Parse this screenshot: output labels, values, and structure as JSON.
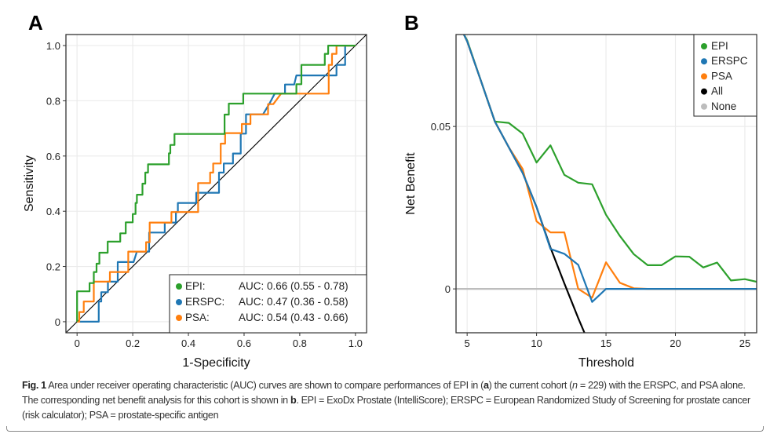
{
  "chart_data": [
    {
      "panel": "A",
      "type": "line",
      "xlabel": "1-Specificity",
      "ylabel": "Sensitivity",
      "xlim": [
        -0.04,
        1.04
      ],
      "ylim": [
        -0.04,
        1.04
      ],
      "xticks": [
        "0",
        "0.2",
        "0.4",
        "0.6",
        "0.8",
        "1.0"
      ],
      "yticks": [
        "0",
        "0.2",
        "0.4",
        "0.6",
        "0.8",
        "1.0"
      ],
      "grid": true,
      "reference_line": "diagonal",
      "legend_position": "bottom-right",
      "series": [
        {
          "name": "EPI:",
          "auc": "AUC: 0.66 (0.55 - 0.78)",
          "color": "#2ca02c",
          "points": [
            [
              0,
              0
            ],
            [
              0,
              0.11
            ],
            [
              0.045,
              0.11
            ],
            [
              0.045,
              0.14
            ],
            [
              0.06,
              0.14
            ],
            [
              0.06,
              0.18
            ],
            [
              0.07,
              0.18
            ],
            [
              0.07,
              0.21
            ],
            [
              0.08,
              0.21
            ],
            [
              0.08,
              0.25
            ],
            [
              0.11,
              0.25
            ],
            [
              0.11,
              0.29
            ],
            [
              0.155,
              0.29
            ],
            [
              0.155,
              0.32
            ],
            [
              0.175,
              0.32
            ],
            [
              0.175,
              0.36
            ],
            [
              0.2,
              0.36
            ],
            [
              0.2,
              0.39
            ],
            [
              0.21,
              0.39
            ],
            [
              0.21,
              0.43
            ],
            [
              0.215,
              0.43
            ],
            [
              0.215,
              0.46
            ],
            [
              0.235,
              0.46
            ],
            [
              0.235,
              0.5
            ],
            [
              0.245,
              0.5
            ],
            [
              0.245,
              0.54
            ],
            [
              0.255,
              0.54
            ],
            [
              0.255,
              0.57
            ],
            [
              0.33,
              0.57
            ],
            [
              0.33,
              0.61
            ],
            [
              0.335,
              0.61
            ],
            [
              0.335,
              0.64
            ],
            [
              0.35,
              0.64
            ],
            [
              0.35,
              0.68
            ],
            [
              0.53,
              0.68
            ],
            [
              0.53,
              0.75
            ],
            [
              0.545,
              0.75
            ],
            [
              0.545,
              0.79
            ],
            [
              0.597,
              0.79
            ],
            [
              0.597,
              0.826
            ],
            [
              0.788,
              0.826
            ],
            [
              0.788,
              0.86
            ],
            [
              0.806,
              0.86
            ],
            [
              0.806,
              0.93
            ],
            [
              0.89,
              0.93
            ],
            [
              0.89,
              0.97
            ],
            [
              0.902,
              0.97
            ],
            [
              0.902,
              1.0
            ],
            [
              1,
              1
            ]
          ]
        },
        {
          "name": "ERSPC:",
          "auc": "AUC: 0.47 (0.36 - 0.58)",
          "color": "#1f77b4",
          "points": [
            [
              0,
              0
            ],
            [
              0.078,
              0
            ],
            [
              0.078,
              0.073
            ],
            [
              0.087,
              0.073
            ],
            [
              0.087,
              0.107
            ],
            [
              0.111,
              0.107
            ],
            [
              0.111,
              0.145
            ],
            [
              0.146,
              0.145
            ],
            [
              0.146,
              0.216
            ],
            [
              0.203,
              0.216
            ],
            [
              0.215,
              0.254
            ],
            [
              0.259,
              0.254
            ],
            [
              0.259,
              0.323
            ],
            [
              0.315,
              0.323
            ],
            [
              0.315,
              0.359
            ],
            [
              0.355,
              0.359
            ],
            [
              0.355,
              0.397
            ],
            [
              0.362,
              0.397
            ],
            [
              0.362,
              0.43
            ],
            [
              0.428,
              0.43
            ],
            [
              0.428,
              0.467
            ],
            [
              0.51,
              0.467
            ],
            [
              0.51,
              0.54
            ],
            [
              0.527,
              0.54
            ],
            [
              0.527,
              0.573
            ],
            [
              0.56,
              0.573
            ],
            [
              0.56,
              0.609
            ],
            [
              0.588,
              0.609
            ],
            [
              0.588,
              0.681
            ],
            [
              0.607,
              0.681
            ],
            [
              0.607,
              0.751
            ],
            [
              0.668,
              0.751
            ],
            [
              0.69,
              0.788
            ],
            [
              0.71,
              0.826
            ],
            [
              0.747,
              0.826
            ],
            [
              0.747,
              0.859
            ],
            [
              0.78,
              0.859
            ],
            [
              0.788,
              0.892
            ],
            [
              0.932,
              0.892
            ],
            [
              0.932,
              0.93
            ],
            [
              0.963,
              0.93
            ],
            [
              0.963,
              1.0
            ],
            [
              1,
              1
            ]
          ]
        },
        {
          "name": "PSA:",
          "auc": "AUC: 0.54 (0.43 - 0.66)",
          "color": "#ff7f0e",
          "points": [
            [
              0,
              0
            ],
            [
              0.008,
              0
            ],
            [
              0.008,
              0.035
            ],
            [
              0.024,
              0.035
            ],
            [
              0.024,
              0.073
            ],
            [
              0.06,
              0.073
            ],
            [
              0.06,
              0.145
            ],
            [
              0.118,
              0.145
            ],
            [
              0.118,
              0.18
            ],
            [
              0.184,
              0.18
            ],
            [
              0.184,
              0.254
            ],
            [
              0.248,
              0.254
            ],
            [
              0.248,
              0.288
            ],
            [
              0.261,
              0.288
            ],
            [
              0.261,
              0.359
            ],
            [
              0.339,
              0.359
            ],
            [
              0.339,
              0.397
            ],
            [
              0.435,
              0.397
            ],
            [
              0.435,
              0.502
            ],
            [
              0.478,
              0.502
            ],
            [
              0.478,
              0.54
            ],
            [
              0.489,
              0.54
            ],
            [
              0.489,
              0.573
            ],
            [
              0.516,
              0.573
            ],
            [
              0.516,
              0.645
            ],
            [
              0.532,
              0.645
            ],
            [
              0.532,
              0.683
            ],
            [
              0.592,
              0.683
            ],
            [
              0.592,
              0.716
            ],
            [
              0.623,
              0.716
            ],
            [
              0.623,
              0.751
            ],
            [
              0.686,
              0.751
            ],
            [
              0.686,
              0.788
            ],
            [
              0.705,
              0.788
            ],
            [
              0.733,
              0.826
            ],
            [
              0.904,
              0.826
            ],
            [
              0.904,
              0.93
            ],
            [
              0.916,
              0.93
            ],
            [
              0.916,
              0.97
            ],
            [
              0.932,
              0.97
            ],
            [
              0.932,
              1.0
            ],
            [
              1,
              1
            ]
          ]
        }
      ]
    },
    {
      "panel": "B",
      "type": "line",
      "xlabel": "Threshold",
      "ylabel": "Net Benefit",
      "xlim": [
        4.2,
        25.85
      ],
      "ylim": [
        -0.0135,
        0.0783
      ],
      "xticks": [
        "5",
        "10",
        "15",
        "20",
        "25"
      ],
      "yticks": [
        {
          "value": 0.05,
          "label": "0.05"
        },
        {
          "value": 0,
          "label": "0"
        }
      ],
      "grid": true,
      "legend_position": "top-right",
      "series": [
        {
          "name": "EPI",
          "color": "#2ca02c",
          "points": [
            [
              4.7,
              0.0789
            ],
            [
              5,
              0.0765
            ],
            [
              6,
              0.064
            ],
            [
              7,
              0.0515
            ],
            [
              8,
              0.0511
            ],
            [
              9,
              0.0478
            ],
            [
              10,
              0.0389
            ],
            [
              11,
              0.0442
            ],
            [
              12,
              0.0351
            ],
            [
              13,
              0.0327
            ],
            [
              14,
              0.0322
            ],
            [
              15,
              0.0228
            ],
            [
              16,
              0.0163
            ],
            [
              17,
              0.0107
            ],
            [
              18,
              0.0073
            ],
            [
              19,
              0.0073
            ],
            [
              20,
              0.01
            ],
            [
              21,
              0.0099
            ],
            [
              22,
              0.0066
            ],
            [
              23,
              0.0081
            ],
            [
              24,
              0.0026
            ],
            [
              25,
              0.003
            ],
            [
              25.85,
              0.0022
            ]
          ]
        },
        {
          "name": "ERSPC",
          "color": "#1f77b4",
          "points": [
            [
              4.7,
              0.0789
            ],
            [
              5,
              0.0762
            ],
            [
              6,
              0.064
            ],
            [
              7,
              0.0515
            ],
            [
              8,
              0.0436
            ],
            [
              9,
              0.0357
            ],
            [
              10,
              0.0252
            ],
            [
              11,
              0.0123
            ],
            [
              12,
              0.0108
            ],
            [
              13,
              0.0074
            ],
            [
              14,
              -0.004
            ],
            [
              15,
              0
            ],
            [
              25.85,
              0
            ]
          ]
        },
        {
          "name": "PSA",
          "color": "#ff7f0e",
          "points": [
            [
              4.7,
              0.0789
            ],
            [
              5,
              0.0762
            ],
            [
              6,
              0.064
            ],
            [
              7,
              0.0515
            ],
            [
              8,
              0.0436
            ],
            [
              9,
              0.0369
            ],
            [
              10,
              0.0208
            ],
            [
              11,
              0.0174
            ],
            [
              12,
              0.0174
            ],
            [
              13,
              0
            ],
            [
              14,
              -0.0027
            ],
            [
              15,
              0.0082
            ],
            [
              16,
              0.0019
            ],
            [
              17,
              0.0002
            ],
            [
              18,
              0
            ],
            [
              25.85,
              0
            ]
          ]
        },
        {
          "name": "All",
          "color": "#000000",
          "points": [
            [
              4.7,
              0.0789
            ],
            [
              5,
              0.0762
            ],
            [
              6,
              0.064
            ],
            [
              7,
              0.0515
            ],
            [
              8,
              0.0436
            ],
            [
              9,
              0.0357
            ],
            [
              10,
              0.0252
            ],
            [
              11,
              0.0127
            ],
            [
              12,
              0.0017
            ],
            [
              13,
              -0.009
            ],
            [
              13.45,
              -0.0135
            ]
          ]
        },
        {
          "name": "None",
          "color": "#bdbdbd",
          "points": [
            [
              4.2,
              0
            ],
            [
              25.85,
              0
            ]
          ]
        }
      ]
    }
  ],
  "panels": {
    "a_label": "A",
    "b_label": "B"
  },
  "caption": {
    "fig_label": "Fig. 1",
    "text_1": " Area under receiver operating characteristic (AUC) curves are shown to compare performances of EPI in (",
    "a": "a",
    "text_2": ") the current cohort (",
    "n": "n",
    "text_3": " = 229) with the ERSPC, and PSA alone. The corresponding net benefit analysis for this cohort is shown in ",
    "b": "b",
    "text_4": ". EPI = ExoDx Prostate (IntelliScore); ERSPC = European Randomized Study of Screening for prostate cancer (risk calculator); PSA = prostate-specific antigen"
  }
}
